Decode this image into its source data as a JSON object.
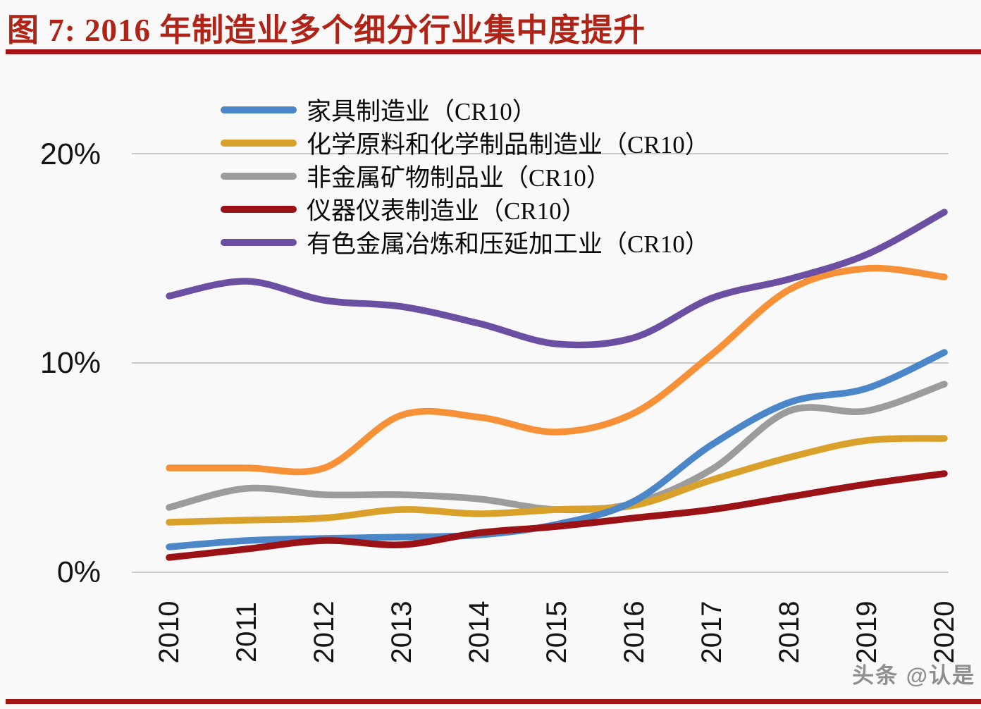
{
  "title": "图 7:  2016 年制造业多个细分行业集中度提升",
  "axis": {
    "y_ticks": [
      "20%",
      "10%",
      "0%"
    ]
  },
  "legend": [
    {
      "label": "家具制造业（CR10）",
      "color": "#4a86c8"
    },
    {
      "label": "化学原料和化学制品制造业（CR10）",
      "color": "#d9a02a"
    },
    {
      "label": "非金属矿物制品业（CR10）",
      "color": "#9c9c9c"
    },
    {
      "label": "仪器仪表制造业（CR10）",
      "color": "#9a1215"
    },
    {
      "label": "有色金属冶炼和压延加工业（CR10）",
      "color": "#6a4fa3"
    }
  ],
  "watermark": "头条 @认是",
  "colors": {
    "title_red": "#b02418",
    "divider_red": "#a51414",
    "gridline": "#c9c9c9",
    "axis_text": "#141414",
    "background": "#f9f9fa",
    "watermark_gray": "#8f8f8f"
  },
  "chart_data": {
    "type": "line",
    "title": "图 7: 2016 年制造业多个细分行业集中度提升",
    "categories": [
      "2010",
      "2011",
      "2012",
      "2013",
      "2014",
      "2015",
      "2016",
      "2017",
      "2018",
      "2019",
      "2020"
    ],
    "unit": "%",
    "ylim": [
      0,
      20
    ],
    "y_gridlines_percent": [
      0,
      10,
      20
    ],
    "grid": "horizontal-only",
    "legend_position": "top-left-vertical",
    "series": [
      {
        "key": "furniture",
        "name": "家具制造业（CR10）",
        "color": "#4a86c8",
        "values": [
          1.2,
          1.5,
          1.6,
          1.7,
          1.8,
          2.3,
          3.4,
          6.1,
          8.1,
          8.8,
          10.5
        ]
      },
      {
        "key": "chemical",
        "name": "化学原料和化学制品制造业（CR10）",
        "color": "#d9a02a",
        "values": [
          2.4,
          2.5,
          2.6,
          3.0,
          2.8,
          3.0,
          3.2,
          4.4,
          5.5,
          6.3,
          6.4
        ]
      },
      {
        "key": "nonmetal-mineral",
        "name": "非金属矿物制品业（CR10）",
        "color": "#9c9c9c",
        "values": [
          3.1,
          4.0,
          3.7,
          3.7,
          3.5,
          3.0,
          3.3,
          4.9,
          7.7,
          7.7,
          9.0
        ]
      },
      {
        "key": "instruments",
        "name": "仪器仪表制造业（CR10）",
        "color": "#9a1215",
        "values": [
          0.7,
          1.1,
          1.5,
          1.3,
          1.9,
          2.2,
          2.6,
          3.0,
          3.6,
          4.2,
          4.7
        ]
      },
      {
        "key": "nonferrous-metals",
        "name": "有色金属冶炼和压延加工业（CR10）",
        "color": "#6a4fa3",
        "values": [
          13.2,
          13.9,
          13.0,
          12.7,
          11.9,
          10.9,
          11.2,
          13.1,
          14.0,
          15.2,
          17.2
        ]
      },
      {
        "key": "unlabeled-orange",
        "name": "",
        "color": "#f79138",
        "values": [
          5.0,
          5.0,
          5.0,
          7.5,
          7.4,
          6.7,
          7.6,
          10.4,
          13.5,
          14.5,
          14.1
        ]
      }
    ]
  }
}
